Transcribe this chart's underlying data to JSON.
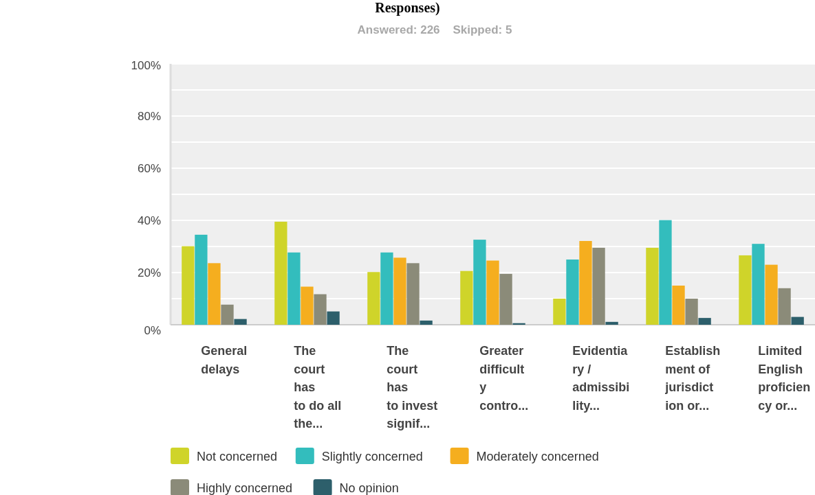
{
  "chart_data": {
    "type": "bar",
    "title": "Responses)",
    "subtitle": "Answered: 226    Skipped: 5",
    "categories": [
      "General\ndelays",
      "The\ncourt\nhas\nto do all\nthe...",
      "The\ncourt\nhas\nto invest\nsignif...",
      "Greater\ndifficult\ny\ncontro...",
      "Evidentia\nry /\nadmissibi\nlity...",
      "Establish\nment of\njurisdict\nion or...",
      "Limited\nEnglish\nproficien\ncy or..."
    ],
    "series": [
      {
        "name": "Not concerned",
        "color": "#cfd42a",
        "values": [
          30.1,
          39.5,
          20.2,
          20.6,
          10.0,
          29.5,
          26.6
        ]
      },
      {
        "name": "Slightly concerned",
        "color": "#33bdbd",
        "values": [
          34.5,
          27.7,
          27.7,
          32.6,
          25.0,
          40.1,
          31.0
        ]
      },
      {
        "name": "Moderately concerned",
        "color": "#f5ae1f",
        "values": [
          23.6,
          14.6,
          25.7,
          24.6,
          32.1,
          15.0,
          23.0
        ]
      },
      {
        "name": "Highly concerned",
        "color": "#8b8b79",
        "values": [
          7.7,
          11.7,
          23.6,
          19.5,
          29.5,
          10.0,
          14.0
        ]
      },
      {
        "name": "No opinion",
        "color": "#2d5f6b",
        "values": [
          2.2,
          5.1,
          1.6,
          0.6,
          1.1,
          2.6,
          3.0
        ]
      }
    ],
    "ylim": [
      0,
      100
    ],
    "yticks": [
      {
        "value": 0,
        "label": "0%"
      },
      {
        "value": 10,
        "label": null
      },
      {
        "value": 20,
        "label": "20%"
      },
      {
        "value": 30,
        "label": null
      },
      {
        "value": 40,
        "label": "40%"
      },
      {
        "value": 50,
        "label": null
      },
      {
        "value": 60,
        "label": "60%"
      },
      {
        "value": 70,
        "label": null
      },
      {
        "value": 80,
        "label": "80%"
      },
      {
        "value": 90,
        "label": null
      },
      {
        "value": 100,
        "label": "100%"
      }
    ],
    "grid": "y",
    "legend": "bottom"
  }
}
